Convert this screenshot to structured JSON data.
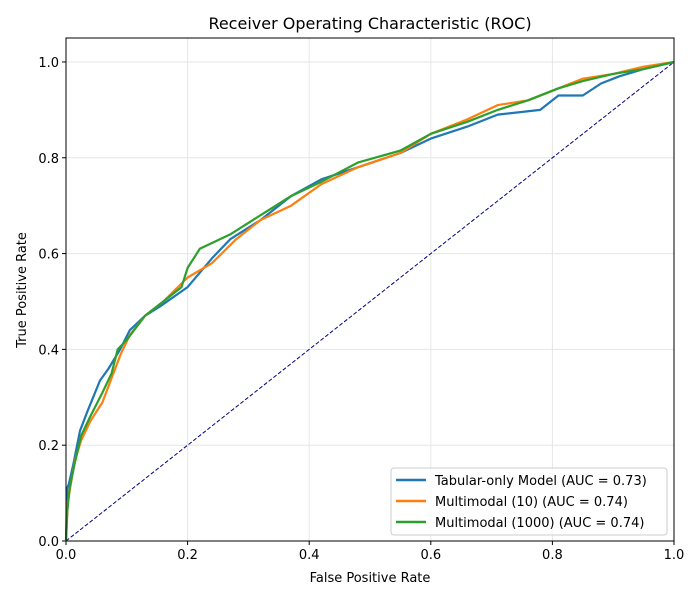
{
  "chart_data": {
    "type": "line",
    "title": "Receiver Operating Characteristic (ROC)",
    "xlabel": "False Positive Rate",
    "ylabel": "True Positive Rate",
    "xlim": [
      0,
      1
    ],
    "ylim": [
      0,
      1.05
    ],
    "xticks": [
      "0.0",
      "0.2",
      "0.4",
      "0.6",
      "0.8",
      "1.0"
    ],
    "yticks": [
      "0.0",
      "0.2",
      "0.4",
      "0.6",
      "0.8",
      "1.0"
    ],
    "grid": true,
    "legend_position": "lower-right",
    "series": [
      {
        "name": "Tabular-only Model (AUC = 0.73)",
        "color": "#1f77b4",
        "x": [
          0,
          0.002,
          0.005,
          0.012,
          0.023,
          0.035,
          0.056,
          0.07,
          0.089,
          0.105,
          0.13,
          0.155,
          0.2,
          0.24,
          0.27,
          0.32,
          0.37,
          0.42,
          0.48,
          0.55,
          0.6,
          0.66,
          0.71,
          0.78,
          0.81,
          0.85,
          0.88,
          0.91,
          0.95,
          1.0
        ],
        "y": [
          0,
          0.11,
          0.12,
          0.16,
          0.23,
          0.27,
          0.335,
          0.36,
          0.4,
          0.44,
          0.47,
          0.49,
          0.53,
          0.59,
          0.63,
          0.67,
          0.72,
          0.755,
          0.78,
          0.81,
          0.84,
          0.865,
          0.89,
          0.9,
          0.93,
          0.93,
          0.955,
          0.97,
          0.985,
          1.0
        ]
      },
      {
        "name": "Multimodal (10) (AUC = 0.74)",
        "color": "#ff7f0e",
        "x": [
          0,
          0.003,
          0.008,
          0.015,
          0.025,
          0.04,
          0.06,
          0.075,
          0.09,
          0.105,
          0.13,
          0.16,
          0.2,
          0.24,
          0.28,
          0.32,
          0.37,
          0.42,
          0.48,
          0.55,
          0.6,
          0.66,
          0.71,
          0.76,
          0.81,
          0.85,
          0.9,
          0.95,
          1.0
        ],
        "y": [
          0,
          0.08,
          0.12,
          0.17,
          0.21,
          0.25,
          0.29,
          0.34,
          0.39,
          0.43,
          0.47,
          0.5,
          0.55,
          0.58,
          0.63,
          0.67,
          0.7,
          0.745,
          0.78,
          0.81,
          0.85,
          0.88,
          0.91,
          0.92,
          0.945,
          0.965,
          0.975,
          0.99,
          1.0
        ]
      },
      {
        "name": "Multimodal (1000) (AUC = 0.74)",
        "color": "#2ca02c",
        "x": [
          0,
          0.002,
          0.006,
          0.014,
          0.025,
          0.04,
          0.06,
          0.075,
          0.085,
          0.1,
          0.13,
          0.16,
          0.19,
          0.2,
          0.22,
          0.27,
          0.32,
          0.37,
          0.42,
          0.48,
          0.55,
          0.6,
          0.66,
          0.71,
          0.76,
          0.81,
          0.85,
          0.9,
          0.95,
          1.0
        ],
        "y": [
          0,
          0.06,
          0.11,
          0.16,
          0.22,
          0.26,
          0.31,
          0.35,
          0.4,
          0.42,
          0.47,
          0.5,
          0.53,
          0.57,
          0.61,
          0.64,
          0.68,
          0.72,
          0.75,
          0.79,
          0.815,
          0.85,
          0.875,
          0.9,
          0.92,
          0.945,
          0.96,
          0.975,
          0.985,
          1.0
        ]
      },
      {
        "name": "",
        "color": "#000080",
        "dashed": true,
        "x": [
          0,
          1
        ],
        "y": [
          0,
          1
        ]
      }
    ]
  }
}
